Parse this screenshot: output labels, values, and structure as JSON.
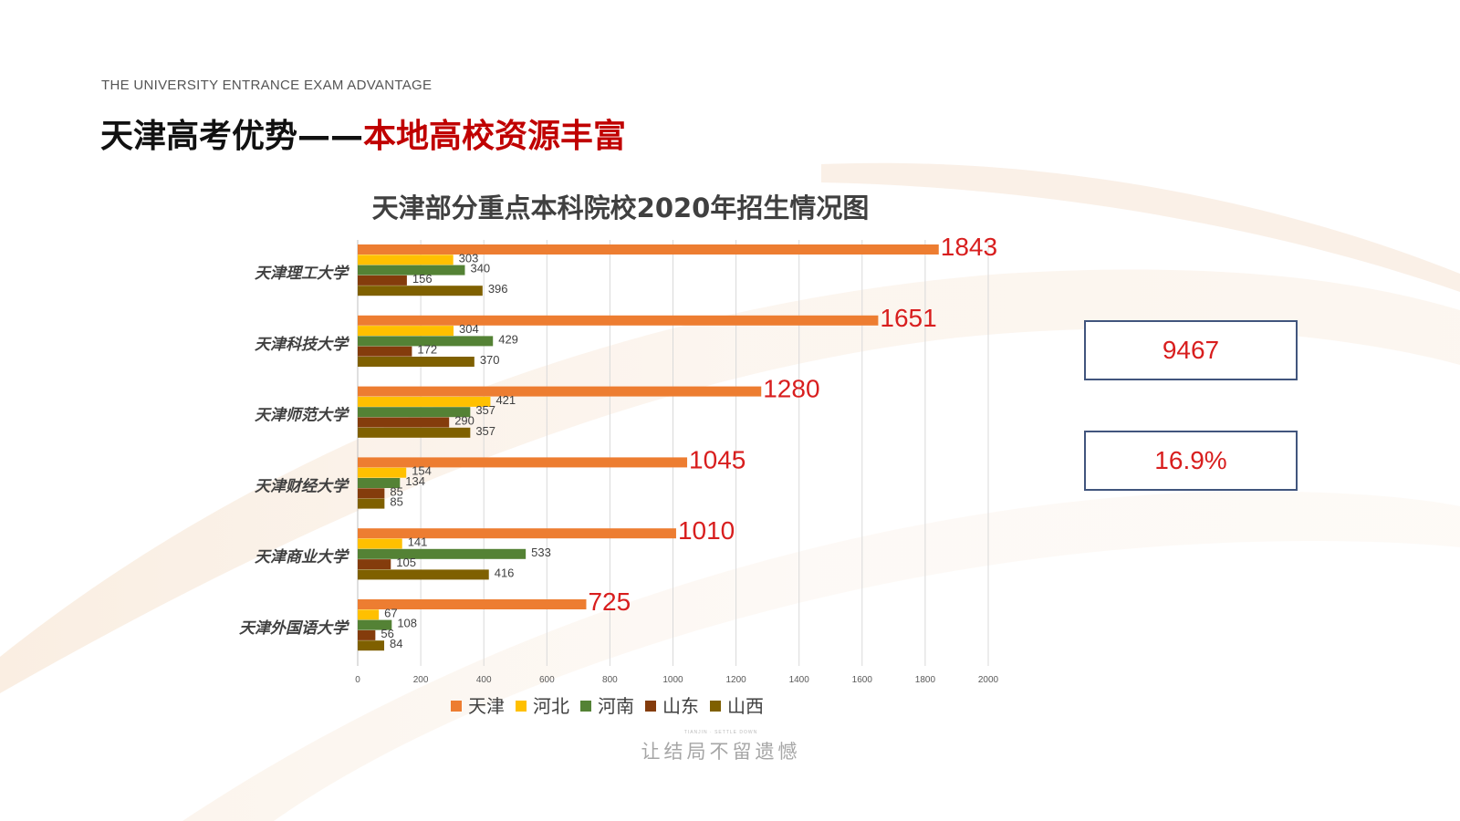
{
  "header": {
    "subtitle_en": "THE UNIVERSITY ENTRANCE EXAM ADVANTAGE",
    "title_main": "天津高考优势——",
    "title_accent": "本地高校资源丰富"
  },
  "stats": {
    "total": "9467",
    "percent": "16.9%"
  },
  "footer": {
    "small_text": "TIANJIN · SETTLE DOWN",
    "slogan": "让结局不留遗憾"
  },
  "colors": {
    "accent_red": "#c00000",
    "label_red": "#d81e1e",
    "box_border": "#41557d"
  },
  "chart_data": {
    "type": "bar",
    "orientation": "horizontal",
    "title": "天津部分重点本科院校2020年招生情况图",
    "categories": [
      "天津理工大学",
      "天津科技大学",
      "天津师范大学",
      "天津财经大学",
      "天津商业大学",
      "天津外国语大学"
    ],
    "series": [
      {
        "name": "天津",
        "color": "#ed7d31",
        "values": [
          1843,
          1651,
          1280,
          1045,
          1010,
          725
        ]
      },
      {
        "name": "河北",
        "color": "#ffc000",
        "values": [
          303,
          304,
          421,
          154,
          141,
          67
        ]
      },
      {
        "name": "河南",
        "color": "#548235",
        "values": [
          340,
          429,
          357,
          134,
          533,
          108
        ]
      },
      {
        "name": "山东",
        "color": "#843c0c",
        "values": [
          156,
          172,
          290,
          85,
          105,
          56
        ]
      },
      {
        "name": "山西",
        "color": "#7f6000",
        "values": [
          396,
          370,
          357,
          85,
          416,
          84
        ]
      }
    ],
    "xlim": [
      0,
      2000
    ],
    "xticks": [
      0,
      200,
      400,
      600,
      800,
      1000,
      1200,
      1400,
      1600,
      1800,
      2000
    ],
    "grid": true,
    "legend_position": "bottom"
  }
}
